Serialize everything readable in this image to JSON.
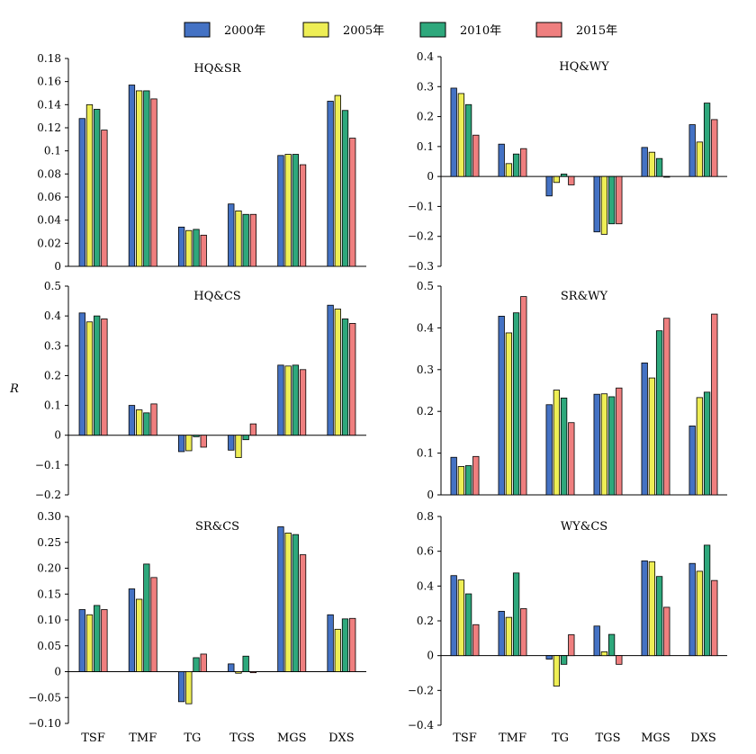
{
  "chart_data": {
    "type": "bar",
    "ylabel": "R",
    "categories": [
      "TSF",
      "TMF",
      "TG",
      "TGS",
      "MGS",
      "DXS"
    ],
    "series_names": [
      "2000年",
      "2005年",
      "2010年",
      "2015年"
    ],
    "colors": [
      "#4472c4",
      "#eeee55",
      "#2ea87c",
      "#ef7f7f"
    ],
    "legend_position": "top",
    "grid": false,
    "panels": [
      {
        "title": "HQ&SR",
        "ylim": [
          0,
          0.18
        ],
        "yticks": [
          "0",
          "0.02",
          "0.04",
          "0.06",
          "0.08",
          "0.1",
          "0.12",
          "0.14",
          "0.16",
          "0.18"
        ],
        "series": [
          {
            "name": "2000年",
            "values": [
              0.128,
              0.157,
              0.034,
              0.054,
              0.096,
              0.143
            ]
          },
          {
            "name": "2005年",
            "values": [
              0.14,
              0.152,
              0.031,
              0.048,
              0.097,
              0.148
            ]
          },
          {
            "name": "2010年",
            "values": [
              0.136,
              0.152,
              0.032,
              0.045,
              0.097,
              0.135
            ]
          },
          {
            "name": "2015年",
            "values": [
              0.118,
              0.145,
              0.027,
              0.045,
              0.088,
              0.111
            ]
          }
        ]
      },
      {
        "title": "HQ&WY",
        "ylim": [
          -0.3,
          0.4
        ],
        "yticks": [
          "−0.3",
          "−0.2",
          "−0.1",
          "0",
          "0.1",
          "0.2",
          "0.3",
          "0.4"
        ],
        "series": [
          {
            "name": "2000年",
            "values": [
              0.295,
              0.108,
              -0.065,
              -0.185,
              0.097,
              0.173
            ]
          },
          {
            "name": "2005年",
            "values": [
              0.277,
              0.043,
              -0.02,
              -0.193,
              0.081,
              0.115
            ]
          },
          {
            "name": "2010年",
            "values": [
              0.24,
              0.075,
              0.008,
              -0.158,
              0.06,
              0.245
            ]
          },
          {
            "name": "2015年",
            "values": [
              0.138,
              0.093,
              -0.028,
              -0.158,
              0.0,
              0.19
            ]
          }
        ]
      },
      {
        "title": "HQ&CS",
        "ylim": [
          -0.2,
          0.5
        ],
        "yticks": [
          "−0.2",
          "−0.1",
          "0",
          "0.1",
          "0.2",
          "0.3",
          "0.4",
          "0.5"
        ],
        "series": [
          {
            "name": "2000年",
            "values": [
              0.41,
              0.1,
              -0.055,
              -0.05,
              0.235,
              0.436
            ]
          },
          {
            "name": "2005年",
            "values": [
              0.38,
              0.085,
              -0.052,
              -0.075,
              0.232,
              0.423
            ]
          },
          {
            "name": "2010年",
            "values": [
              0.4,
              0.075,
              -0.005,
              -0.015,
              0.235,
              0.39
            ]
          },
          {
            "name": "2015年",
            "values": [
              0.39,
              0.105,
              -0.04,
              0.038,
              0.22,
              0.375
            ]
          }
        ]
      },
      {
        "title": "SR&WY",
        "ylim": [
          0,
          0.5
        ],
        "yticks": [
          "0",
          "0.1",
          "0.2",
          "0.3",
          "0.4",
          "0.5"
        ],
        "series": [
          {
            "name": "2000年",
            "values": [
              0.09,
              0.428,
              0.216,
              0.241,
              0.316,
              0.165
            ]
          },
          {
            "name": "2005年",
            "values": [
              0.068,
              0.388,
              0.251,
              0.242,
              0.28,
              0.233
            ]
          },
          {
            "name": "2010年",
            "values": [
              0.07,
              0.436,
              0.232,
              0.235,
              0.393,
              0.246
            ]
          },
          {
            "name": "2015年",
            "values": [
              0.092,
              0.475,
              0.173,
              0.256,
              0.423,
              0.433
            ]
          }
        ]
      },
      {
        "title": "SR&CS",
        "ylim": [
          -0.1,
          0.3
        ],
        "yticks": [
          "−0.10",
          "−0.05",
          "0",
          "0.05",
          "0.10",
          "0.15",
          "0.20",
          "0.25",
          "0.30"
        ],
        "series": [
          {
            "name": "2000年",
            "values": [
              0.12,
              0.16,
              -0.058,
              0.015,
              0.28,
              0.11
            ]
          },
          {
            "name": "2005年",
            "values": [
              0.11,
              0.14,
              -0.062,
              -0.003,
              0.268,
              0.082
            ]
          },
          {
            "name": "2010年",
            "values": [
              0.128,
              0.208,
              0.027,
              0.03,
              0.265,
              0.102
            ]
          },
          {
            "name": "2015年",
            "values": [
              0.12,
              0.182,
              0.034,
              -0.002,
              0.226,
              0.103
            ]
          }
        ]
      },
      {
        "title": "WY&CS",
        "ylim": [
          -0.4,
          0.8
        ],
        "yticks": [
          "−0.4",
          "−0.2",
          "0",
          "0.2",
          "0.4",
          "0.6",
          "0.8"
        ],
        "series": [
          {
            "name": "2000年",
            "values": [
              0.46,
              0.255,
              -0.02,
              0.17,
              0.545,
              0.53
            ]
          },
          {
            "name": "2005年",
            "values": [
              0.435,
              0.22,
              -0.175,
              0.022,
              0.54,
              0.485
            ]
          },
          {
            "name": "2010年",
            "values": [
              0.355,
              0.475,
              -0.05,
              0.122,
              0.455,
              0.635
            ]
          },
          {
            "name": "2015年",
            "values": [
              0.178,
              0.27,
              0.12,
              -0.05,
              0.278,
              0.432
            ]
          }
        ]
      }
    ]
  }
}
